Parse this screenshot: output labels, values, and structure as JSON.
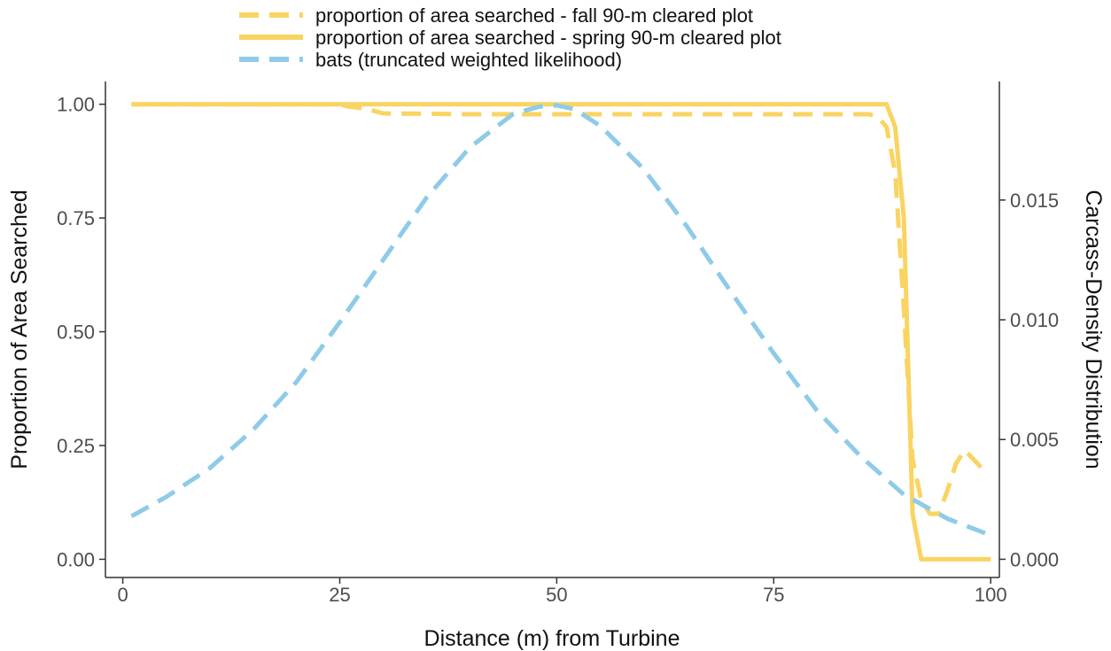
{
  "chart_data": {
    "type": "line",
    "xlabel": "Distance (m) from Turbine",
    "ylabel": "Proportion of Area Searched",
    "y2label": "Carcass-Density Distribution",
    "xlim": [
      -2,
      101
    ],
    "ylim": [
      -0.04,
      1.05
    ],
    "y2lim": [
      -0.00076,
      0.01995
    ],
    "xticks": [
      0,
      25,
      50,
      75,
      100
    ],
    "yticks": [
      0.0,
      0.25,
      0.5,
      0.75,
      1.0
    ],
    "ytick_labels": [
      "0.00",
      "0.25",
      "0.50",
      "0.75",
      "1.00"
    ],
    "y2ticks": [
      0.0,
      0.005,
      0.01,
      0.015
    ],
    "y2tick_labels": [
      "0.000",
      "0.005",
      "0.010",
      "0.015"
    ],
    "grid": false,
    "legend_position": "top",
    "colors": {
      "yellow": "#f9d462",
      "blue": "#8ecbe8",
      "axis": "#333333",
      "tick": "#4d4d4d"
    },
    "series": [
      {
        "name": "proportion of area searched - fall 90-m cleared plot",
        "axis": "left",
        "style": "dashed",
        "color": "#f9d462",
        "x": [
          1,
          25,
          26,
          28,
          30,
          40,
          50,
          60,
          70,
          80,
          86,
          87,
          88,
          89,
          90,
          91,
          92,
          93,
          94,
          95,
          96,
          97,
          98,
          99,
          100
        ],
        "y": [
          1.0,
          1.0,
          0.995,
          0.99,
          0.98,
          0.978,
          0.978,
          0.978,
          0.978,
          0.978,
          0.978,
          0.972,
          0.95,
          0.85,
          0.55,
          0.22,
          0.13,
          0.1,
          0.1,
          0.15,
          0.21,
          0.24,
          0.22,
          0.2,
          0.2
        ]
      },
      {
        "name": "proportion of area searched - spring 90-m cleared plot",
        "axis": "left",
        "style": "solid",
        "color": "#f9d462",
        "x": [
          1,
          25,
          50,
          75,
          88,
          89,
          90,
          91,
          92,
          93,
          95,
          100
        ],
        "y": [
          1.0,
          1.0,
          1.0,
          1.0,
          1.0,
          0.95,
          0.75,
          0.1,
          0.0,
          0.0,
          0.0,
          0.0
        ]
      },
      {
        "name": "bats (truncated weighted likelihood)",
        "axis": "right",
        "style": "dashed",
        "color": "#8ecbe8",
        "x": [
          1,
          5,
          10,
          15,
          20,
          25,
          30,
          35,
          40,
          45,
          48,
          50,
          52,
          55,
          60,
          65,
          70,
          75,
          80,
          85,
          90,
          95,
          100
        ],
        "y": [
          0.0018,
          0.0026,
          0.0038,
          0.0054,
          0.0074,
          0.0099,
          0.0125,
          0.0151,
          0.0172,
          0.0186,
          0.0189,
          0.01895,
          0.0188,
          0.0181,
          0.0163,
          0.0139,
          0.0112,
          0.0086,
          0.0062,
          0.0043,
          0.0027,
          0.0017,
          0.001
        ]
      }
    ]
  }
}
